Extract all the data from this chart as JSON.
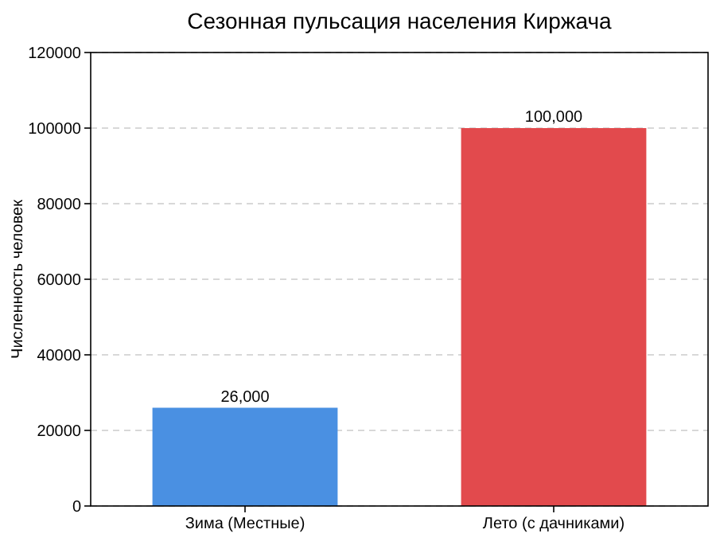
{
  "chart_data": {
    "type": "bar",
    "title": "Сезонная пульсация населения Киржача",
    "ylabel": "Численность человек",
    "categories": [
      "Зима (Местные)",
      "Лето (с дачниками)"
    ],
    "values": [
      26000,
      100000
    ],
    "colors": [
      "#4a90e2",
      "#e24a4d"
    ],
    "value_labels": [
      "26,000",
      "100,000"
    ],
    "ylim": [
      0,
      120000
    ],
    "yticks": [
      0,
      20000,
      40000,
      60000,
      80000,
      100000,
      120000
    ],
    "grid": "y"
  }
}
